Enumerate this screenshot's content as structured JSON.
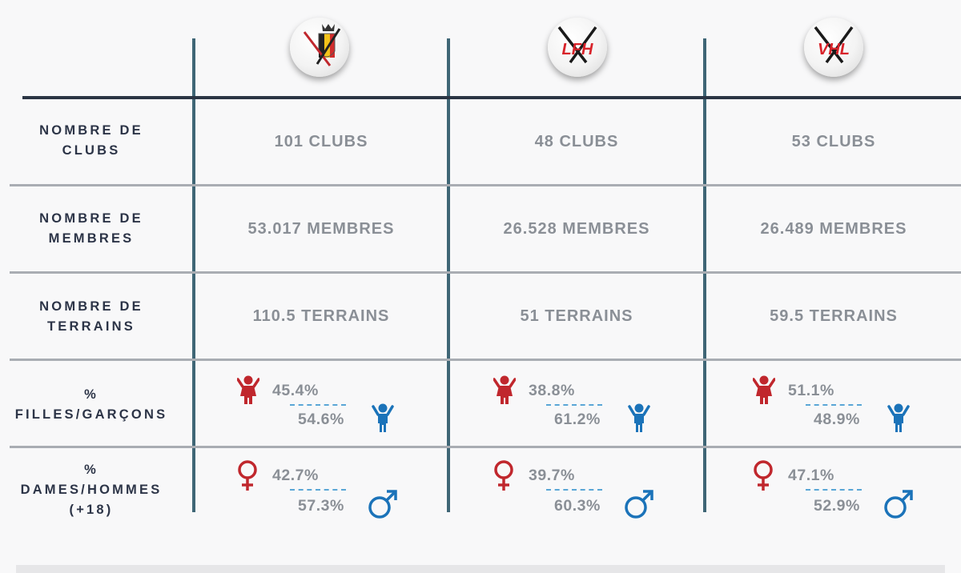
{
  "rows": {
    "clubs": {
      "line1": "NOMBRE DE",
      "line2": "CLUBS"
    },
    "membres": {
      "line1": "NOMBRE DE",
      "line2": "MEMBRES"
    },
    "terrains": {
      "line1": "NOMBRE DE",
      "line2": "TERRAINS"
    },
    "filles": {
      "line1": "%",
      "line2": "FILLES/GARÇONS"
    },
    "dames": {
      "line1": "%",
      "line2": "DAMES/HOMMES",
      "line3": "(+18)"
    }
  },
  "federations": [
    {
      "logo_icon": "belgian-hockey-crest-icon",
      "clubs": "101 CLUBS",
      "membres": "53.017 MEMBRES",
      "terrains": "110.5 TERRAINS",
      "filles": "45.4%",
      "garcons": "54.6%",
      "dames": "42.7%",
      "hommes": "57.3%"
    },
    {
      "logo_icon": "lfh-logo-icon",
      "logo_text": "LFH",
      "clubs": "48 CLUBS",
      "membres": "26.528 MEMBRES",
      "terrains": "51 TERRAINS",
      "filles": "38.8%",
      "garcons": "61.2%",
      "dames": "39.7%",
      "hommes": "60.3%"
    },
    {
      "logo_icon": "vhl-logo-icon",
      "logo_text": "VHL",
      "clubs": "53 CLUBS",
      "membres": "26.489 MEMBRES",
      "terrains": "59.5 TERRAINS",
      "filles": "51.1%",
      "garcons": "48.9%",
      "dames": "47.1%",
      "hommes": "52.9%"
    }
  ],
  "icons": {
    "girl": "girl-icon",
    "boy": "boy-icon",
    "female": "female-symbol-icon",
    "male": "male-symbol-icon"
  },
  "colors": {
    "female": "#c0272d",
    "male": "#1b73b9",
    "grid_vertical": "#3f6676",
    "header_rule": "#2b3544",
    "label_text": "#2c3447",
    "value_text": "#8a8f96"
  }
}
